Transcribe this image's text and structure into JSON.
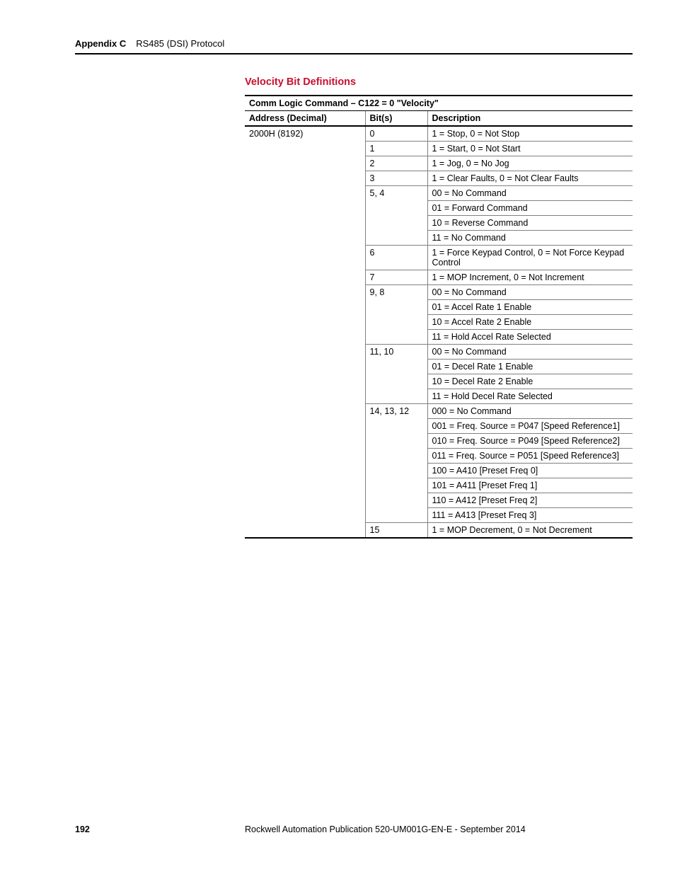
{
  "header": {
    "appendix_label": "Appendix C",
    "appendix_title": "RS485 (DSI) Protocol"
  },
  "section": {
    "title": "Velocity Bit Definitions",
    "table_caption": "Comm Logic Command – C122 = 0 \"Velocity\"",
    "columns": {
      "address": "Address (Decimal)",
      "bits": "Bit(s)",
      "description": "Description"
    },
    "address_value": "2000H (8192)",
    "rows": [
      {
        "bits": "0",
        "descs": [
          "1 = Stop, 0 = Not Stop"
        ]
      },
      {
        "bits": "1",
        "descs": [
          "1 = Start, 0 = Not Start"
        ]
      },
      {
        "bits": "2",
        "descs": [
          "1 = Jog, 0 = No Jog"
        ]
      },
      {
        "bits": "3",
        "descs": [
          "1 = Clear Faults, 0 = Not Clear Faults"
        ]
      },
      {
        "bits": "5, 4",
        "descs": [
          "00 = No Command",
          "01 = Forward Command",
          "10 = Reverse Command",
          "11 = No Command"
        ]
      },
      {
        "bits": "6",
        "descs": [
          "1 = Force Keypad Control, 0 = Not Force Keypad Control"
        ]
      },
      {
        "bits": "7",
        "descs": [
          "1 = MOP Increment, 0 = Not Increment"
        ]
      },
      {
        "bits": "9, 8",
        "descs": [
          "00 = No Command",
          "01 = Accel Rate 1 Enable",
          "10 = Accel Rate 2 Enable",
          "11 = Hold Accel Rate Selected"
        ]
      },
      {
        "bits": "11, 10",
        "descs": [
          "00 = No Command",
          "01 = Decel Rate 1 Enable",
          "10 = Decel Rate 2 Enable",
          "11 = Hold Decel Rate Selected"
        ]
      },
      {
        "bits": "14, 13, 12",
        "descs": [
          "000 = No Command",
          "001 = Freq. Source = P047 [Speed Reference1]",
          "010 = Freq. Source = P049 [Speed Reference2]",
          "011 = Freq. Source = P051 [Speed Reference3]",
          "100 = A410 [Preset Freq 0]",
          "101 = A411 [Preset Freq 1]",
          "110 = A412 [Preset Freq 2]",
          "111 = A413 [Preset Freq 3]"
        ]
      },
      {
        "bits": "15",
        "descs": [
          "1 = MOP Decrement, 0 = Not Decrement"
        ]
      }
    ]
  },
  "footer": {
    "page_number": "192",
    "publication": "Rockwell Automation Publication 520-UM001G-EN-E - September 2014"
  }
}
